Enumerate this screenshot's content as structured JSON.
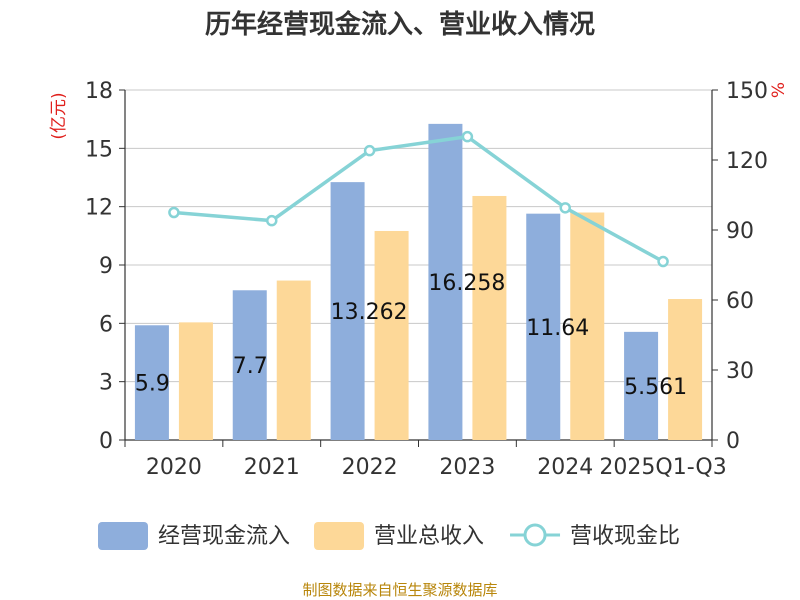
{
  "chart_data": {
    "type": "bar",
    "title": "历年经营现金流入、营业收入情况",
    "categories": [
      "2020",
      "2021",
      "2022",
      "2023",
      "2024",
      "2025Q1-Q3"
    ],
    "series": [
      {
        "name": "经营现金流入",
        "kind": "bar",
        "axis": "left",
        "color": "#8eaedc",
        "values": [
          5.9,
          7.7,
          13.262,
          16.258,
          11.64,
          5.561
        ],
        "labels": [
          "5.9",
          "7.7",
          "13.262",
          "16.258",
          "11.64",
          "5.561"
        ]
      },
      {
        "name": "营业总收入",
        "kind": "bar",
        "axis": "left",
        "color": "#fdd898",
        "values": [
          6.05,
          8.2,
          10.75,
          12.55,
          11.7,
          7.25
        ]
      },
      {
        "name": "营收现金比",
        "kind": "line",
        "axis": "right",
        "color": "#86d3d6",
        "values": [
          97.5,
          94,
          124,
          130,
          99.5,
          76.5
        ]
      }
    ],
    "y_left": {
      "label": "(亿元)",
      "min": 0,
      "max": 18,
      "ticks": [
        0,
        3,
        6,
        9,
        12,
        15,
        18
      ]
    },
    "y_right": {
      "label": "%",
      "min": 0,
      "max": 150,
      "ticks": [
        0,
        30,
        60,
        90,
        120,
        150
      ]
    },
    "grid": true,
    "legend": "bottom"
  },
  "source": "制图数据来自恒生聚源数据库"
}
